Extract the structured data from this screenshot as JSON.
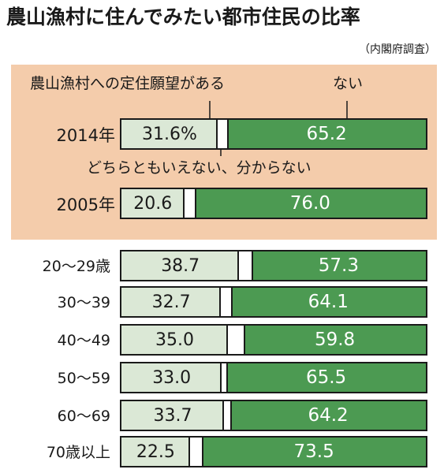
{
  "title": "農山漁村に住んでみたい都市住民の比率",
  "source": "（内閣府調査）",
  "annotations": {
    "want": "農山漁村への定住願望がある",
    "not": "ない",
    "neither": "どちらともいえない、分からない"
  },
  "colors": {
    "want": "#dbe8d6",
    "not": "#4c9a52",
    "neither": "#ffffff",
    "panel": "#f4ccab"
  },
  "chart_data": {
    "type": "bar",
    "orientation": "horizontal-stacked",
    "title": "農山漁村に住んでみたい都市住民の比率",
    "series_order": [
      "農山漁村への定住願望がある",
      "どちらともいえない、分からない",
      "ない"
    ],
    "rows": [
      {
        "label": "2014年",
        "want": 31.6,
        "want_label": "31.6%",
        "not": 65.2,
        "not_label": "65.2",
        "group": "year"
      },
      {
        "label": "2005年",
        "want": 20.6,
        "want_label": "20.6",
        "not": 76.0,
        "not_label": "76.0",
        "group": "year"
      },
      {
        "label": "20～29歳",
        "want": 38.7,
        "want_label": "38.7",
        "not": 57.3,
        "not_label": "57.3",
        "group": "age"
      },
      {
        "label": "30～39",
        "want": 32.7,
        "want_label": "32.7",
        "not": 64.1,
        "not_label": "64.1",
        "group": "age"
      },
      {
        "label": "40～49",
        "want": 35.0,
        "want_label": "35.0",
        "not": 59.8,
        "not_label": "59.8",
        "group": "age"
      },
      {
        "label": "50～59",
        "want": 33.0,
        "want_label": "33.0",
        "not": 65.5,
        "not_label": "65.5",
        "group": "age"
      },
      {
        "label": "60～69",
        "want": 33.7,
        "want_label": "33.7",
        "not": 64.2,
        "not_label": "64.2",
        "group": "age"
      },
      {
        "label": "70歳以上",
        "want": 22.5,
        "want_label": "22.5",
        "not": 73.5,
        "not_label": "73.5",
        "group": "age"
      }
    ]
  }
}
